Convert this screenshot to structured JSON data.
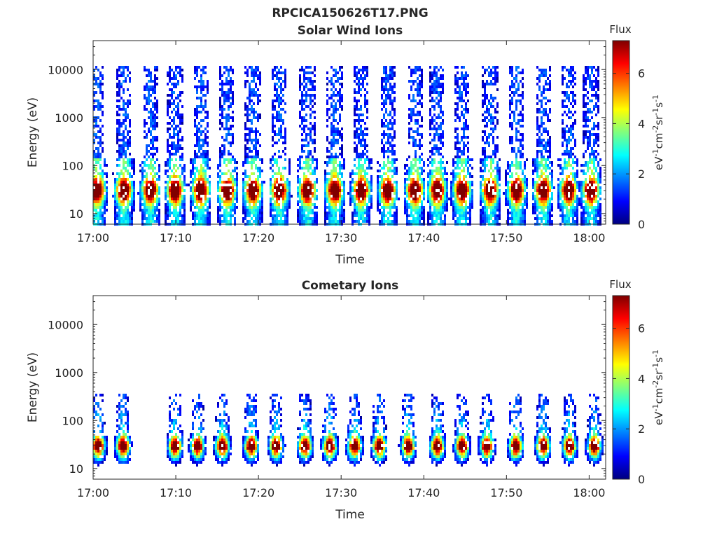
{
  "figure": {
    "title": "RPCICA150626T17.PNG"
  },
  "colors": {
    "colormap": "jet",
    "colormap_stops": [
      "#00007f",
      "#0000ff",
      "#007fff",
      "#00ffff",
      "#7fff7f",
      "#ffff00",
      "#ff7f00",
      "#ff0000",
      "#7f0000"
    ],
    "axis_color": "#262626",
    "background": "#ffffff"
  },
  "chart_data": [
    {
      "type": "heatmap",
      "title": "Solar Wind Ions",
      "xlabel": "Time",
      "ylabel": "Energy (eV)",
      "x_tick_labels": [
        "17:00",
        "17:10",
        "17:20",
        "17:30",
        "17:40",
        "17:50",
        "18:00"
      ],
      "x_tick_minutes": [
        0,
        10,
        20,
        30,
        40,
        50,
        60
      ],
      "x_range_minutes": [
        0,
        62
      ],
      "y_scale": "log",
      "y_range": [
        6,
        40000
      ],
      "y_tick_values": [
        10,
        100,
        1000,
        10000
      ],
      "y_tick_labels": [
        "10",
        "100",
        "1000",
        "10000"
      ],
      "colorbar": {
        "title": "Flux",
        "label": "eV^-1 cm^-2 sr^-1 s^-1",
        "range": [
          0,
          7.3
        ],
        "tick_values": [
          0,
          2,
          4,
          6
        ],
        "tick_labels": [
          "0",
          "2",
          "4",
          "6"
        ]
      },
      "bursts_minutes": [
        0.3,
        3.6,
        6.8,
        9.8,
        12.9,
        16.1,
        19.2,
        22.4,
        25.8,
        29.1,
        32.3,
        35.5,
        38.8,
        41.5,
        44.5,
        47.9,
        51.1,
        54.3,
        57.4,
        60.1
      ],
      "burst_peak_energy_eV": 30,
      "burst_peak_flux": 6.5,
      "burst_high_energy_eV": 12000,
      "burst_high_energy_flux": 1.5
    },
    {
      "type": "heatmap",
      "title": "Cometary Ions",
      "xlabel": "Time",
      "ylabel": "Energy (eV)",
      "x_tick_labels": [
        "17:00",
        "17:10",
        "17:20",
        "17:30",
        "17:40",
        "17:50",
        "18:00"
      ],
      "x_tick_minutes": [
        0,
        10,
        20,
        30,
        40,
        50,
        60
      ],
      "x_range_minutes": [
        0,
        62
      ],
      "y_scale": "log",
      "y_range": [
        6,
        40000
      ],
      "y_tick_values": [
        10,
        100,
        1000,
        10000
      ],
      "y_tick_labels": [
        "10",
        "100",
        "1000",
        "10000"
      ],
      "colorbar": {
        "title": "Flux",
        "label": "eV^-1 cm^-2 sr^-1 s^-1",
        "range": [
          0,
          7.3
        ],
        "tick_values": [
          0,
          2,
          4,
          6
        ],
        "tick_labels": [
          "0",
          "2",
          "4",
          "6"
        ]
      },
      "bursts_minutes": [
        0.5,
        3.5,
        9.8,
        12.5,
        15.5,
        19.0,
        22.0,
        25.5,
        28.5,
        31.5,
        34.5,
        38.0,
        41.5,
        44.5,
        47.5,
        51.0,
        54.3,
        57.5,
        60.5
      ],
      "burst_peak_energy_eV": 28,
      "burst_peak_flux": 7.0,
      "burst_high_energy_eV": 400,
      "burst_high_energy_flux": 3.0
    }
  ]
}
